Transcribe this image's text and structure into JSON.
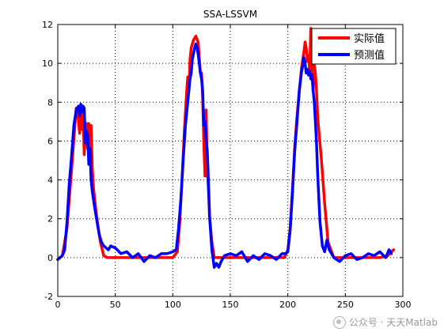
{
  "chart_data": {
    "type": "line",
    "title": "SSA-LSSVM",
    "xlabel": "",
    "ylabel": "",
    "xlim": [
      0,
      300
    ],
    "ylim": [
      -2,
      12
    ],
    "xticks": [
      0,
      50,
      100,
      150,
      200,
      250,
      300
    ],
    "yticks": [
      -2,
      0,
      2,
      4,
      6,
      8,
      10,
      12
    ],
    "grid": true,
    "legend_position": "top-right",
    "series": [
      {
        "name": "实际值",
        "color": "#ff0000",
        "x": [
          0,
          4,
          8,
          12,
          16,
          17,
          19,
          20,
          21,
          22,
          23,
          24,
          25,
          26,
          27,
          28,
          29,
          30,
          31,
          33,
          35,
          37,
          40,
          43,
          47,
          55,
          65,
          75,
          85,
          95,
          100,
          104,
          106,
          108,
          110,
          112,
          113,
          114,
          115,
          116,
          118,
          120,
          122,
          123,
          124,
          125,
          126,
          127,
          128,
          129,
          130,
          131,
          132,
          134,
          136,
          140,
          150,
          160,
          170,
          180,
          190,
          197,
          200,
          202,
          204,
          206,
          208,
          210,
          212,
          214,
          215,
          216,
          217,
          218,
          219,
          220,
          221,
          222,
          223,
          224,
          225,
          226,
          227,
          229,
          232,
          235,
          240,
          250,
          260,
          270,
          280,
          287,
          290,
          292
        ],
        "values": [
          -0.1,
          0.1,
          1.5,
          4.5,
          7.7,
          7.7,
          6.4,
          7.5,
          6.6,
          7.4,
          5.3,
          6.4,
          6.9,
          5.6,
          6.9,
          5.2,
          6.8,
          4.6,
          3.6,
          2.5,
          1.6,
          0.8,
          0.1,
          0,
          0,
          0,
          0,
          0,
          0,
          0,
          0,
          0.3,
          1.8,
          4,
          6.5,
          8.5,
          9.3,
          8.6,
          10.2,
          10.8,
          11.2,
          11.4,
          11.1,
          10.3,
          9.5,
          9.5,
          8.2,
          5.8,
          4.2,
          7.6,
          4.5,
          3.5,
          2.1,
          0.8,
          0,
          0,
          0,
          0,
          0,
          0,
          0,
          0,
          0.4,
          1.5,
          3.5,
          5.7,
          7.3,
          8.6,
          9.8,
          10.6,
          11.1,
          10.8,
          10.1,
          10.4,
          9.6,
          11.8,
          10.5,
          8.6,
          9.9,
          9.5,
          8.5,
          7.2,
          6.5,
          5.2,
          2.8,
          0.8,
          0,
          0,
          0,
          0,
          0,
          0.1,
          0.3,
          0.4
        ]
      },
      {
        "name": "预测值",
        "color": "#0000ff",
        "x": [
          0,
          2,
          4,
          6,
          8,
          10,
          12,
          14,
          16,
          18,
          19,
          20,
          21,
          22,
          23,
          24,
          25,
          26,
          27,
          28,
          29,
          30,
          32,
          34,
          36,
          38,
          40,
          42,
          44,
          46,
          50,
          55,
          60,
          65,
          70,
          75,
          80,
          85,
          90,
          95,
          100,
          103,
          105,
          107,
          109,
          111,
          113,
          115,
          116,
          117,
          118,
          119,
          120,
          121,
          122,
          123,
          124,
          125,
          126,
          127,
          128,
          129,
          130,
          131,
          132,
          134,
          136,
          138,
          140,
          142,
          145,
          150,
          155,
          160,
          165,
          170,
          175,
          180,
          185,
          190,
          195,
          198,
          200,
          202,
          204,
          206,
          208,
          210,
          212,
          213,
          214,
          215,
          216,
          217,
          218,
          219,
          220,
          221,
          222,
          223,
          224,
          225,
          226,
          227,
          228,
          230,
          232,
          234,
          236,
          238,
          240,
          245,
          250,
          255,
          260,
          265,
          270,
          275,
          280,
          285,
          288,
          290
        ],
        "values": [
          -0.1,
          0,
          0.1,
          0.4,
          1.8,
          3.8,
          5.2,
          6.8,
          7.6,
          7.8,
          7.3,
          7.9,
          7.5,
          7.8,
          7.7,
          5.9,
          6.5,
          6.3,
          4.8,
          5.6,
          4,
          3.4,
          2.6,
          1.9,
          1.2,
          0.8,
          0.6,
          0.5,
          0.4,
          0.6,
          0.5,
          0.2,
          0.3,
          0,
          0.2,
          -0.2,
          0.1,
          0,
          0.2,
          0.2,
          0.3,
          0.4,
          1.5,
          3,
          5,
          6.8,
          8,
          9.2,
          9.5,
          10.2,
          10.5,
          10.8,
          11,
          10.8,
          10.5,
          10,
          9.5,
          9.2,
          8.6,
          6.8,
          7,
          6,
          5.5,
          3.9,
          2.1,
          0.4,
          -0.5,
          -0.3,
          -0.5,
          -0.2,
          0.1,
          0.2,
          0.1,
          0.3,
          -0.2,
          0.1,
          -0.1,
          0.2,
          0.1,
          -0.1,
          0.2,
          0.2,
          0.3,
          1.4,
          3.3,
          5.5,
          7,
          8.6,
          9.6,
          9.9,
          10.3,
          10,
          9.5,
          9.7,
          9.4,
          9.6,
          9.2,
          9.4,
          8.6,
          8,
          7,
          5.8,
          4.2,
          3,
          1.8,
          0.6,
          0.3,
          0.9,
          0.4,
          0.2,
          0,
          -0.2,
          0.1,
          0.2,
          -0.1,
          0,
          0.2,
          0.1,
          0.3,
          0,
          0.4,
          0.2
        ]
      }
    ]
  },
  "watermark": "公众号 · 天天Matlab"
}
